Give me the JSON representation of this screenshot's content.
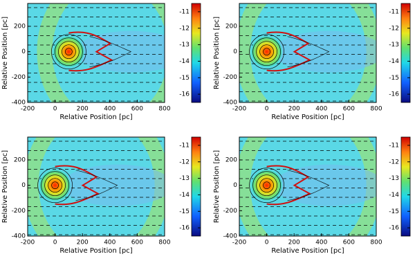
{
  "chart_data": [
    {
      "type": "heatmap",
      "x_label": "Relative Position [pc]",
      "y_label": "Relative Position [pc]",
      "xlim": [
        -200,
        800
      ],
      "ylim": [
        -400,
        380
      ],
      "xticks": [
        -200,
        0,
        200,
        400,
        600,
        800
      ],
      "yticks": [
        -400,
        -200,
        0,
        200
      ],
      "clim": [
        -16.5,
        -10.5
      ],
      "cticks": [
        -16,
        -15,
        -14,
        -13,
        -12,
        -11
      ],
      "source_x": 100
    },
    {
      "type": "heatmap",
      "x_label": "Relative Position [pc]",
      "y_label": "Relative Position [pc]",
      "xlim": [
        -200,
        800
      ],
      "ylim": [
        -400,
        380
      ],
      "xticks": [
        -200,
        0,
        200,
        400,
        600,
        800
      ],
      "yticks": [
        -400,
        -200,
        0,
        200
      ],
      "clim": [
        -16.5,
        -10.5
      ],
      "cticks": [
        -16,
        -15,
        -14,
        -13,
        -12,
        -11
      ],
      "source_x": 0
    },
    {
      "type": "heatmap",
      "x_label": "Relative Position [pc]",
      "y_label": "Relative Position [pc]",
      "xlim": [
        -200,
        800
      ],
      "ylim": [
        -400,
        380
      ],
      "xticks": [
        -200,
        0,
        200,
        400,
        600,
        800
      ],
      "yticks": [
        -400,
        -200,
        0,
        200
      ],
      "clim": [
        -16.5,
        -10.5
      ],
      "cticks": [
        -16,
        -15,
        -14,
        -13,
        -12,
        -11
      ],
      "source_x": 0
    },
    {
      "type": "heatmap",
      "x_label": "Relative Position [pc]",
      "y_label": "Relative Position [pc]",
      "xlim": [
        -200,
        800
      ],
      "ylim": [
        -400,
        380
      ],
      "xticks": [
        -200,
        0,
        200,
        400,
        600,
        800
      ],
      "yticks": [
        -400,
        -200,
        0,
        200
      ],
      "clim": [
        -16.5,
        -10.5
      ],
      "cticks": [
        -16,
        -15,
        -14,
        -13,
        -12,
        -11
      ],
      "source_x": 0
    }
  ]
}
